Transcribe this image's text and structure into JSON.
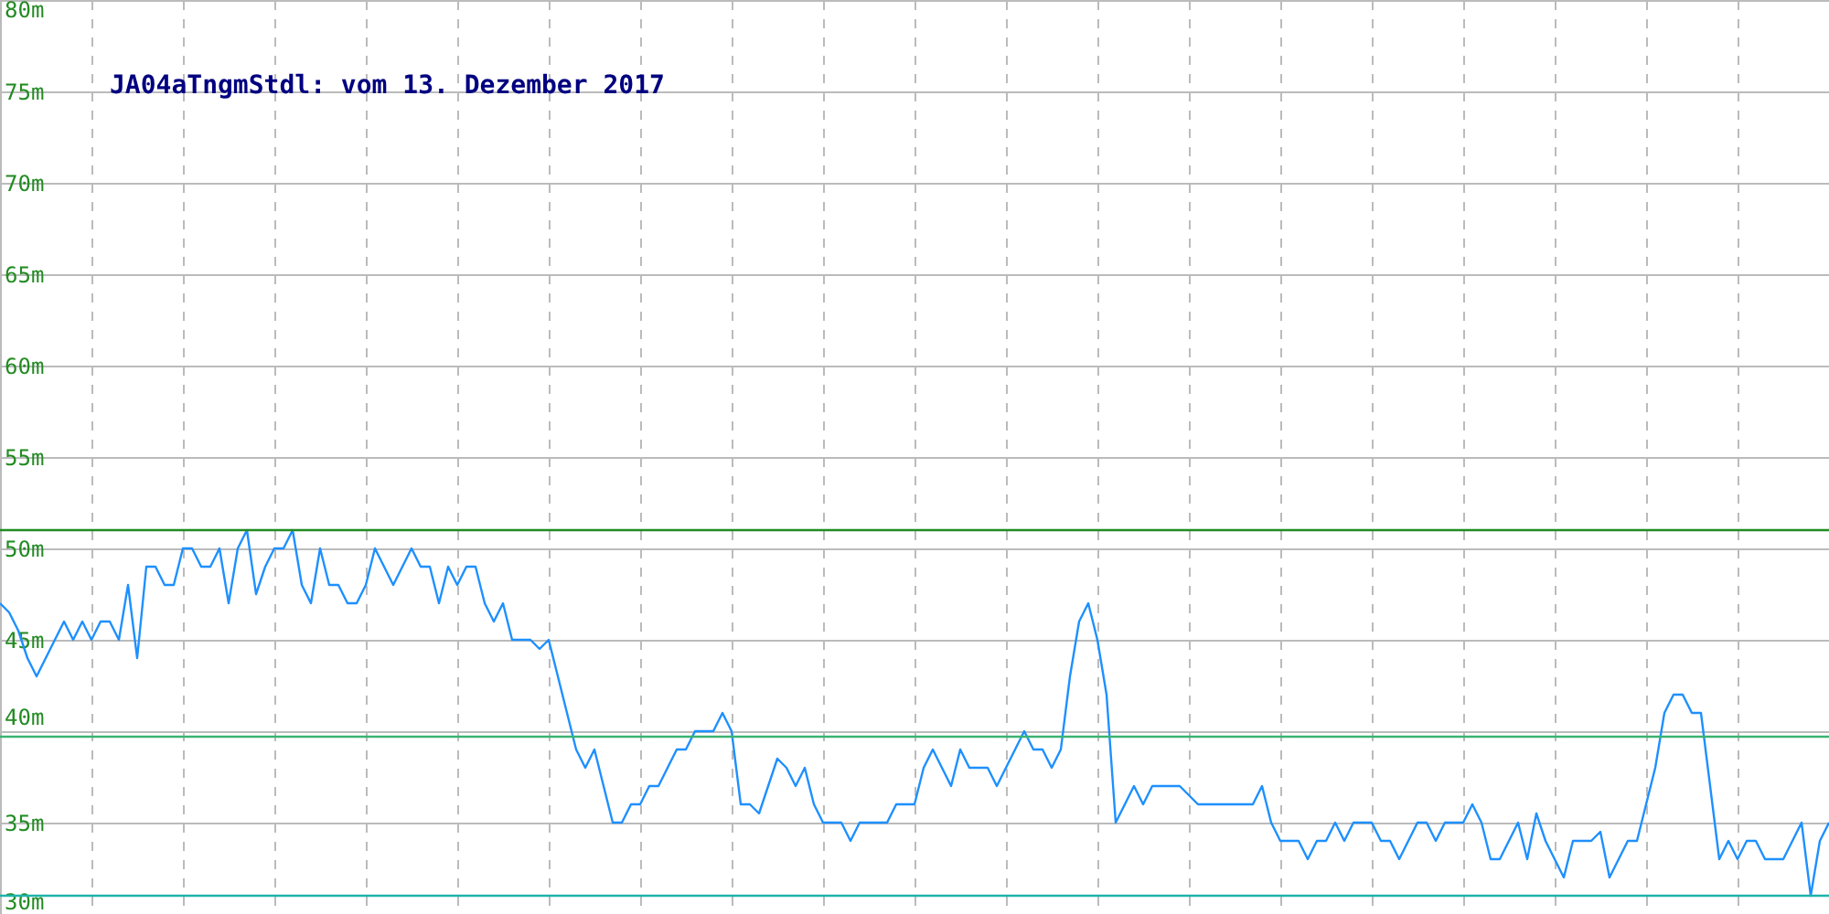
{
  "chart_data": {
    "type": "line",
    "title": "JA04aTngmStdl: vom 13. Dezember 2017",
    "categories": [
      null,
      null,
      null,
      null,
      null,
      null,
      null,
      null,
      null,
      null,
      null,
      null,
      null,
      null,
      null,
      null,
      null,
      null,
      null,
      null,
      null,
      null,
      null,
      null,
      null,
      null,
      null,
      null,
      null,
      null,
      null,
      null,
      null,
      null,
      null,
      null,
      null,
      null,
      null,
      null,
      null,
      null,
      null,
      null,
      null,
      null,
      null,
      null,
      null,
      null,
      null,
      null,
      null,
      null,
      null,
      null,
      null,
      null,
      null,
      null,
      null,
      null,
      null,
      null,
      null,
      null,
      null,
      null,
      null,
      null,
      null,
      null,
      null,
      null,
      null,
      null,
      null,
      null,
      null,
      null,
      null,
      null,
      null,
      null,
      null,
      null,
      null,
      null,
      null,
      null,
      null,
      null,
      null,
      null,
      null,
      null,
      null,
      null,
      null,
      null,
      null,
      null,
      null,
      null,
      null,
      null,
      null,
      null,
      null,
      null,
      null,
      null,
      null,
      null,
      null,
      null,
      null,
      null,
      null,
      null,
      null,
      null,
      null,
      null,
      null,
      null,
      null,
      null,
      null,
      null,
      null,
      null,
      null,
      null,
      null,
      null,
      null,
      null,
      null,
      null,
      null,
      null,
      null,
      null,
      null,
      null,
      null,
      null,
      null,
      null,
      null,
      null,
      null,
      null,
      null,
      null,
      null,
      null,
      null,
      null,
      null,
      null,
      null,
      null,
      null,
      null,
      null,
      null,
      null,
      null,
      null,
      null,
      null,
      null,
      null,
      null,
      null,
      null,
      null,
      null,
      null,
      null,
      null,
      null,
      null,
      null,
      null,
      null,
      null,
      null,
      null,
      null,
      null,
      null,
      null,
      null,
      null,
      null,
      null,
      null,
      null
    ],
    "series": [
      {
        "color": "#1e90ff",
        "values": [
          47,
          46.5,
          45.5,
          44,
          43,
          44,
          45,
          46,
          45,
          46,
          45,
          46,
          46,
          45,
          48,
          44,
          49,
          49,
          48,
          48,
          50,
          50,
          49,
          49,
          50,
          47,
          50,
          51,
          47.5,
          49,
          50,
          50,
          51,
          48,
          47,
          50,
          48,
          48,
          47,
          47,
          48,
          50,
          49,
          48,
          49,
          50,
          49,
          49,
          47,
          49,
          48,
          49,
          49,
          47,
          46,
          47,
          45,
          45,
          45,
          44.5,
          45,
          43,
          41,
          39,
          38,
          39,
          37,
          35,
          35,
          36,
          36,
          37,
          37,
          38,
          39,
          39,
          40,
          40,
          40,
          41,
          40,
          36,
          36,
          35.5,
          37,
          38.5,
          38,
          37,
          38,
          36,
          35,
          35,
          35,
          34,
          35,
          35,
          35,
          35,
          36,
          36,
          36,
          38,
          39,
          38,
          37,
          39,
          38,
          38,
          38,
          37,
          38,
          39,
          40,
          39,
          39,
          38,
          39,
          43,
          46,
          47,
          45,
          42,
          35,
          36,
          37,
          36,
          37,
          37,
          37,
          37,
          36.5,
          36,
          36,
          36,
          36,
          36,
          36,
          36,
          37,
          35,
          34,
          34,
          34,
          33,
          34,
          34,
          35,
          34,
          35,
          35,
          35,
          34,
          34,
          33,
          34,
          35,
          35,
          34,
          35,
          35,
          35,
          36,
          35,
          33,
          33,
          34,
          35,
          33,
          35.5,
          34,
          33,
          32,
          34,
          34,
          34,
          34.5,
          32,
          33,
          34,
          34,
          36,
          38,
          41,
          42,
          42,
          41,
          41,
          37,
          33,
          34,
          33,
          34,
          34,
          33,
          33,
          33,
          34,
          35,
          31,
          34,
          35
        ]
      }
    ],
    "ylim": [
      30,
      80
    ],
    "yticks": [
      {
        "value": 30,
        "label": "30m"
      },
      {
        "value": 35,
        "label": "35m"
      },
      {
        "value": 40,
        "label": "40m"
      },
      {
        "value": 45,
        "label": "45m"
      },
      {
        "value": 50,
        "label": "50m"
      },
      {
        "value": 55,
        "label": "55m"
      },
      {
        "value": 60,
        "label": "60m"
      },
      {
        "value": 65,
        "label": "65m"
      },
      {
        "value": 70,
        "label": "70m"
      },
      {
        "value": 75,
        "label": "75m"
      },
      {
        "value": 80,
        "label": "80m"
      }
    ],
    "tick_labels": "y",
    "grid": true,
    "ref_lines": [
      {
        "axis": "y",
        "value": 51,
        "color": "#228b22"
      },
      {
        "axis": "y",
        "value": 39.7,
        "color": "#3cb371"
      },
      {
        "axis": "y",
        "value": 31,
        "color": "#20b2aa"
      }
    ]
  }
}
